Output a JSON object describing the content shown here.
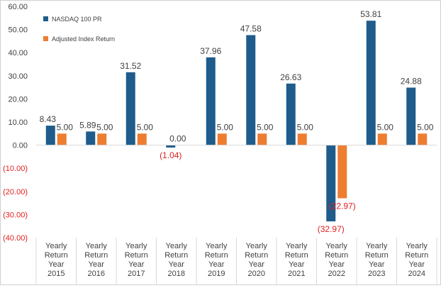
{
  "chart_data": {
    "type": "bar",
    "title": "",
    "xlabel": "",
    "ylabel": "",
    "ylim": [
      -40,
      60
    ],
    "y_ticks": [
      60,
      50,
      40,
      30,
      20,
      10,
      0,
      -10,
      -20,
      -30,
      -40
    ],
    "y_tick_labels": [
      "60.00",
      "50.00",
      "40.00",
      "30.00",
      "20.00",
      "10.00",
      "0.00",
      "(10.00)",
      "(20.00)",
      "(30.00)",
      "(40.00)"
    ],
    "categories": [
      [
        "Yearly",
        "Return",
        "Year",
        "2015"
      ],
      [
        "Yearly",
        "Return",
        "Year",
        "2016"
      ],
      [
        "Yearly",
        "Return",
        "Year",
        "2017"
      ],
      [
        "Yearly",
        "Return",
        "Year",
        "2018"
      ],
      [
        "Yearly",
        "Return",
        "Year",
        "2019"
      ],
      [
        "Yearly",
        "Return",
        "Year",
        "2020"
      ],
      [
        "Yearly",
        "Return",
        "Year",
        "2021"
      ],
      [
        "Yearly",
        "Return",
        "Year",
        "2022"
      ],
      [
        "Yearly",
        "Return",
        "Year",
        "2023"
      ],
      [
        "Yearly",
        "Return",
        "Year",
        "2024"
      ]
    ],
    "series": [
      {
        "name": "NASDAQ 100 PR",
        "color": "#1f5c8b",
        "values": [
          8.43,
          5.89,
          31.52,
          -1.04,
          37.96,
          47.58,
          26.63,
          -32.97,
          53.81,
          24.88
        ],
        "labels": [
          "8.43",
          "5.89",
          "31.52",
          "(1.04)",
          "37.96",
          "47.58",
          "26.63",
          "(32.97)",
          "53.81",
          "24.88"
        ]
      },
      {
        "name": "Adjusted Index Return",
        "color": "#ed7d31",
        "values": [
          5.0,
          5.0,
          5.0,
          0.0,
          5.0,
          5.0,
          5.0,
          -22.97,
          5.0,
          5.0
        ],
        "labels": [
          "5.00",
          "5.00",
          "5.00",
          "0.00",
          "5.00",
          "5.00",
          "5.00",
          "(22.97)",
          "5.00",
          "5.00"
        ]
      }
    ],
    "negative_label_color": "#e02020",
    "text_color": "#404040",
    "legend_position": "top-left",
    "grid": false
  }
}
